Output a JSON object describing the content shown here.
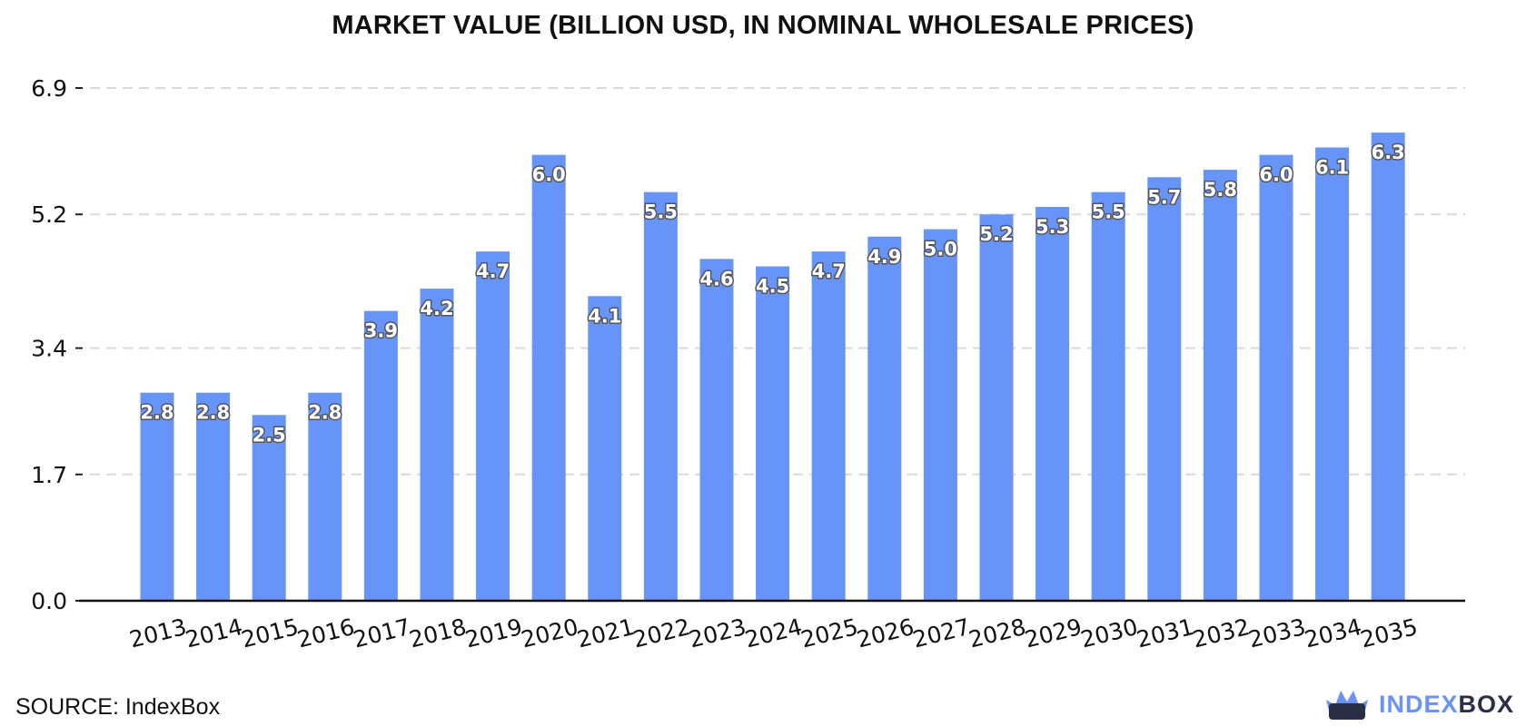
{
  "chart_data": {
    "type": "bar",
    "title": "MARKET VALUE (BILLION USD, IN NOMINAL WHOLESALE PRICES)",
    "xlabel": "",
    "ylabel": "",
    "categories": [
      "2013",
      "2014",
      "2015",
      "2016",
      "2017",
      "2018",
      "2019",
      "2020",
      "2021",
      "2022",
      "2023",
      "2024",
      "2025",
      "2026",
      "2027",
      "2028",
      "2029",
      "2030",
      "2031",
      "2032",
      "2033",
      "2034",
      "2035"
    ],
    "values": [
      2.8,
      2.8,
      2.5,
      2.8,
      3.9,
      4.2,
      4.7,
      6.0,
      4.1,
      5.5,
      4.6,
      4.5,
      4.7,
      4.9,
      5.0,
      5.2,
      5.3,
      5.5,
      5.7,
      5.8,
      6.0,
      6.1,
      6.3
    ],
    "data_labels": [
      "2.8",
      "2.8",
      "2.5",
      "2.8",
      "3.9",
      "4.2",
      "4.7",
      "6.0",
      "4.1",
      "5.5",
      "4.6",
      "4.5",
      "4.7",
      "4.9",
      "5.0",
      "5.2",
      "5.3",
      "5.5",
      "5.7",
      "5.8",
      "6.0",
      "6.1",
      "6.3"
    ],
    "yticks": [
      0.0,
      1.7,
      3.4,
      5.2,
      6.9
    ],
    "ytick_labels": [
      "0.0",
      "1.7",
      "3.4",
      "5.2",
      "6.9"
    ],
    "ylim": [
      0,
      6.9
    ],
    "grid": true,
    "legend": "none",
    "bar_color": "#6694f9"
  },
  "footer": {
    "source": "SOURCE: IndexBox",
    "brand_part1": "INDEX",
    "brand_part2": "BOX",
    "brand_icon": "crown-box-icon"
  }
}
